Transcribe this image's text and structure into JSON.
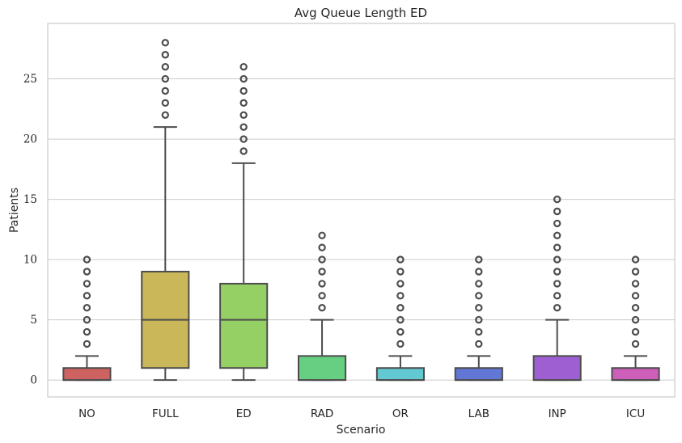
{
  "chart_data": {
    "type": "box",
    "title": "Avg Queue Length ED",
    "xlabel": "Scenario",
    "ylabel": "Patients",
    "ylim": [
      -1.4,
      29.6
    ],
    "yticks": [
      "0",
      "5",
      "10",
      "15",
      "20",
      "25"
    ],
    "grid": "horizontal",
    "categories": [
      "NO",
      "FULL",
      "ED",
      "RAD",
      "OR",
      "LAB",
      "INP",
      "ICU"
    ],
    "colors": [
      "#cd6260",
      "#cab759",
      "#95d064",
      "#67cf81",
      "#62c8d1",
      "#6276d5",
      "#9e5fd3",
      "#cd5fba"
    ],
    "boxes": [
      {
        "min": 0,
        "q1": 0,
        "median": 0,
        "q3": 1,
        "max": 2,
        "outliers": [
          3,
          4,
          5,
          6,
          7,
          8,
          9,
          10
        ]
      },
      {
        "min": 0,
        "q1": 1,
        "median": 5,
        "q3": 9,
        "max": 21,
        "outliers": [
          22,
          23,
          24,
          25,
          26,
          27,
          28
        ]
      },
      {
        "min": 0,
        "q1": 1,
        "median": 5,
        "q3": 8,
        "max": 18,
        "outliers": [
          19,
          20,
          21,
          22,
          23,
          24,
          25,
          26
        ]
      },
      {
        "min": 0,
        "q1": 0,
        "median": 0,
        "q3": 2,
        "max": 5,
        "outliers": [
          6,
          7,
          8,
          9,
          10,
          11,
          12
        ]
      },
      {
        "min": 0,
        "q1": 0,
        "median": 0,
        "q3": 1,
        "max": 2,
        "outliers": [
          3,
          4,
          5,
          6,
          7,
          8,
          9,
          10
        ]
      },
      {
        "min": 0,
        "q1": 0,
        "median": 0,
        "q3": 1,
        "max": 2,
        "outliers": [
          3,
          4,
          5,
          6,
          7,
          8,
          9,
          10
        ]
      },
      {
        "min": 0,
        "q1": 0,
        "median": 0,
        "q3": 2,
        "max": 5,
        "outliers": [
          6,
          7,
          8,
          9,
          10,
          11,
          12,
          13,
          14,
          15
        ]
      },
      {
        "min": 0,
        "q1": 0,
        "median": 0,
        "q3": 1,
        "max": 2,
        "outliers": [
          3,
          4,
          5,
          6,
          7,
          8,
          9,
          10
        ]
      }
    ]
  }
}
